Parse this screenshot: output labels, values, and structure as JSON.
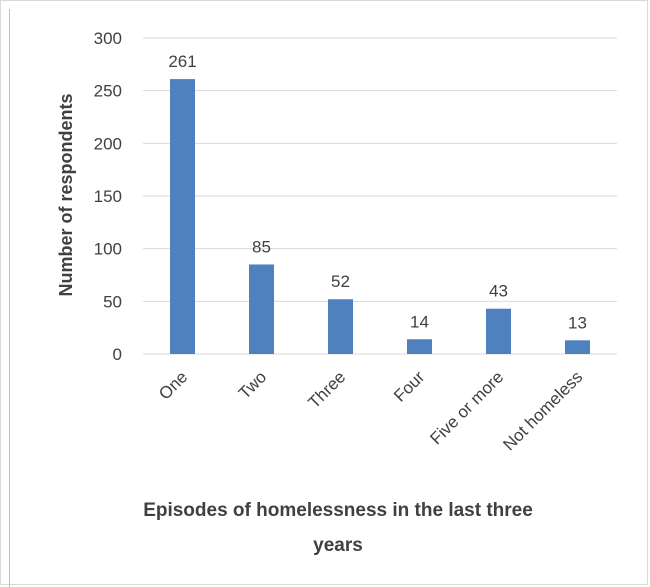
{
  "chart_data": {
    "type": "bar",
    "categories": [
      "One",
      "Two",
      "Three",
      "Four",
      "Five or more",
      "Not homeless"
    ],
    "values": [
      261,
      85,
      52,
      14,
      43,
      13
    ],
    "data_labels": [
      "261",
      "85",
      "52",
      "14",
      "43",
      "13"
    ],
    "title": "",
    "xlabel_lines": [
      "Episodes of homelessness in the last three",
      "years"
    ],
    "ylabel": "Number of respondents",
    "ylim": [
      0,
      300
    ],
    "yticks": [
      "0",
      "50",
      "100",
      "150",
      "200",
      "250",
      "300"
    ],
    "grid": true,
    "legend": "none",
    "bar_color": "#4e81bd",
    "grid_color": "#d9d9d9"
  }
}
